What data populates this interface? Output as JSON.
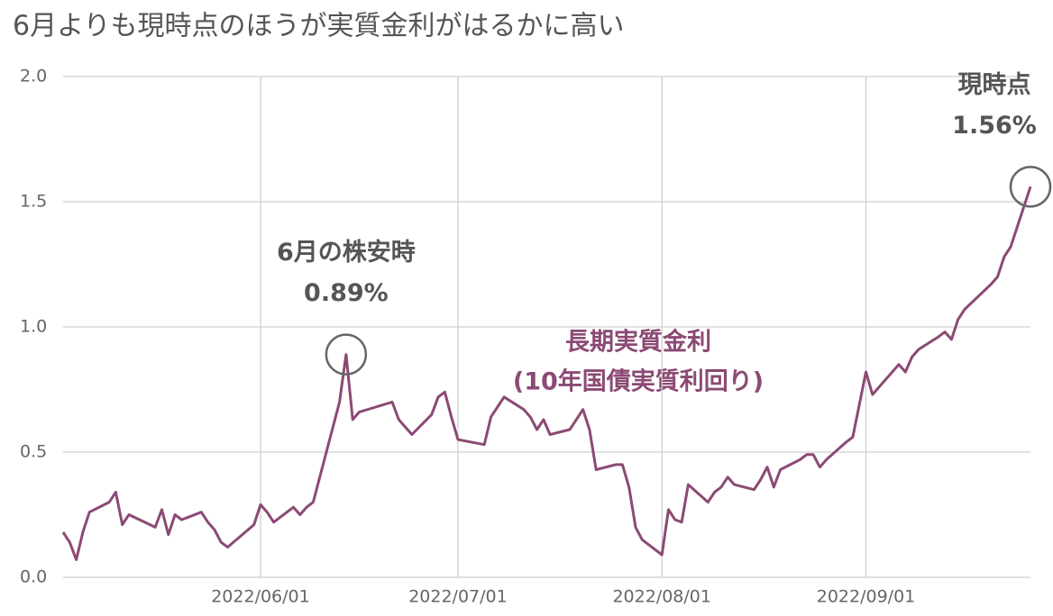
{
  "chart_data": {
    "type": "line",
    "title": "6月よりも現時点のほうが実質金利がはるかに高い",
    "x": [
      "2022/05/02",
      "2022/05/03",
      "2022/05/04",
      "2022/05/05",
      "2022/05/06",
      "2022/05/09",
      "2022/05/10",
      "2022/05/11",
      "2022/05/12",
      "2022/05/16",
      "2022/05/17",
      "2022/05/18",
      "2022/05/19",
      "2022/05/20",
      "2022/05/23",
      "2022/05/24",
      "2022/05/25",
      "2022/05/26",
      "2022/05/27",
      "2022/05/31",
      "2022/06/01",
      "2022/06/02",
      "2022/06/03",
      "2022/06/06",
      "2022/06/07",
      "2022/06/08",
      "2022/06/09",
      "2022/06/13",
      "2022/06/14",
      "2022/06/15",
      "2022/06/16",
      "2022/06/21",
      "2022/06/22",
      "2022/06/23",
      "2022/06/24",
      "2022/06/27",
      "2022/06/28",
      "2022/06/29",
      "2022/06/30",
      "2022/07/01",
      "2022/07/05",
      "2022/07/06",
      "2022/07/07",
      "2022/07/08",
      "2022/07/11",
      "2022/07/12",
      "2022/07/13",
      "2022/07/14",
      "2022/07/15",
      "2022/07/18",
      "2022/07/19",
      "2022/07/20",
      "2022/07/21",
      "2022/07/22",
      "2022/07/25",
      "2022/07/26",
      "2022/07/27",
      "2022/07/28",
      "2022/07/29",
      "2022/08/01",
      "2022/08/02",
      "2022/08/03",
      "2022/08/04",
      "2022/08/05",
      "2022/08/08",
      "2022/08/09",
      "2022/08/10",
      "2022/08/11",
      "2022/08/12",
      "2022/08/15",
      "2022/08/16",
      "2022/08/17",
      "2022/08/18",
      "2022/08/19",
      "2022/08/22",
      "2022/08/23",
      "2022/08/24",
      "2022/08/25",
      "2022/08/26",
      "2022/08/29",
      "2022/08/30",
      "2022/08/31",
      "2022/09/01",
      "2022/09/02",
      "2022/09/06",
      "2022/09/07",
      "2022/09/08",
      "2022/09/09",
      "2022/09/12",
      "2022/09/13",
      "2022/09/14",
      "2022/09/15",
      "2022/09/16",
      "2022/09/20",
      "2022/09/21",
      "2022/09/22",
      "2022/09/23",
      "2022/09/26"
    ],
    "series": [
      {
        "name": "長期実質金利",
        "subname": "(10年国債実質利回り)",
        "color": "#8b4a74",
        "values": [
          0.18,
          0.14,
          0.07,
          0.18,
          0.26,
          0.3,
          0.34,
          0.21,
          0.25,
          0.2,
          0.27,
          0.17,
          0.25,
          0.23,
          0.26,
          0.22,
          0.19,
          0.14,
          0.12,
          0.21,
          0.29,
          0.26,
          0.22,
          0.28,
          0.25,
          0.28,
          0.3,
          0.7,
          0.89,
          0.63,
          0.66,
          0.7,
          0.63,
          0.6,
          0.57,
          0.65,
          0.72,
          0.74,
          0.64,
          0.55,
          0.53,
          0.64,
          0.68,
          0.72,
          0.67,
          0.64,
          0.59,
          0.63,
          0.57,
          0.59,
          0.63,
          0.67,
          0.59,
          0.43,
          0.45,
          0.45,
          0.36,
          0.2,
          0.15,
          0.09,
          0.27,
          0.23,
          0.22,
          0.37,
          0.3,
          0.34,
          0.36,
          0.4,
          0.37,
          0.35,
          0.39,
          0.44,
          0.36,
          0.43,
          0.47,
          0.49,
          0.49,
          0.44,
          0.47,
          0.54,
          0.56,
          0.69,
          0.82,
          0.73,
          0.85,
          0.82,
          0.88,
          0.91,
          0.96,
          0.98,
          0.95,
          1.03,
          1.07,
          1.17,
          1.2,
          1.28,
          1.32,
          1.56
        ]
      }
    ],
    "annotations": [
      {
        "title": "6月の株安時",
        "value": 0.89,
        "value_label": "0.89%"
      },
      {
        "title": "現時点",
        "value": 1.56,
        "value_label": "1.56%"
      }
    ],
    "xlim": [
      "2022/05/02",
      "2022/09/26"
    ],
    "xticks": [
      "2022/06/01",
      "2022/07/01",
      "2022/08/01",
      "2022/09/01"
    ],
    "ylim": [
      0,
      2
    ],
    "yticks": [
      {
        "value": 0,
        "label": "0.0"
      },
      {
        "value": 0.5,
        "label": "0.5"
      },
      {
        "value": 1,
        "label": "1.0"
      },
      {
        "value": 1.5,
        "label": "1.5"
      },
      {
        "value": 2,
        "label": "2.0"
      }
    ],
    "grid": true
  }
}
